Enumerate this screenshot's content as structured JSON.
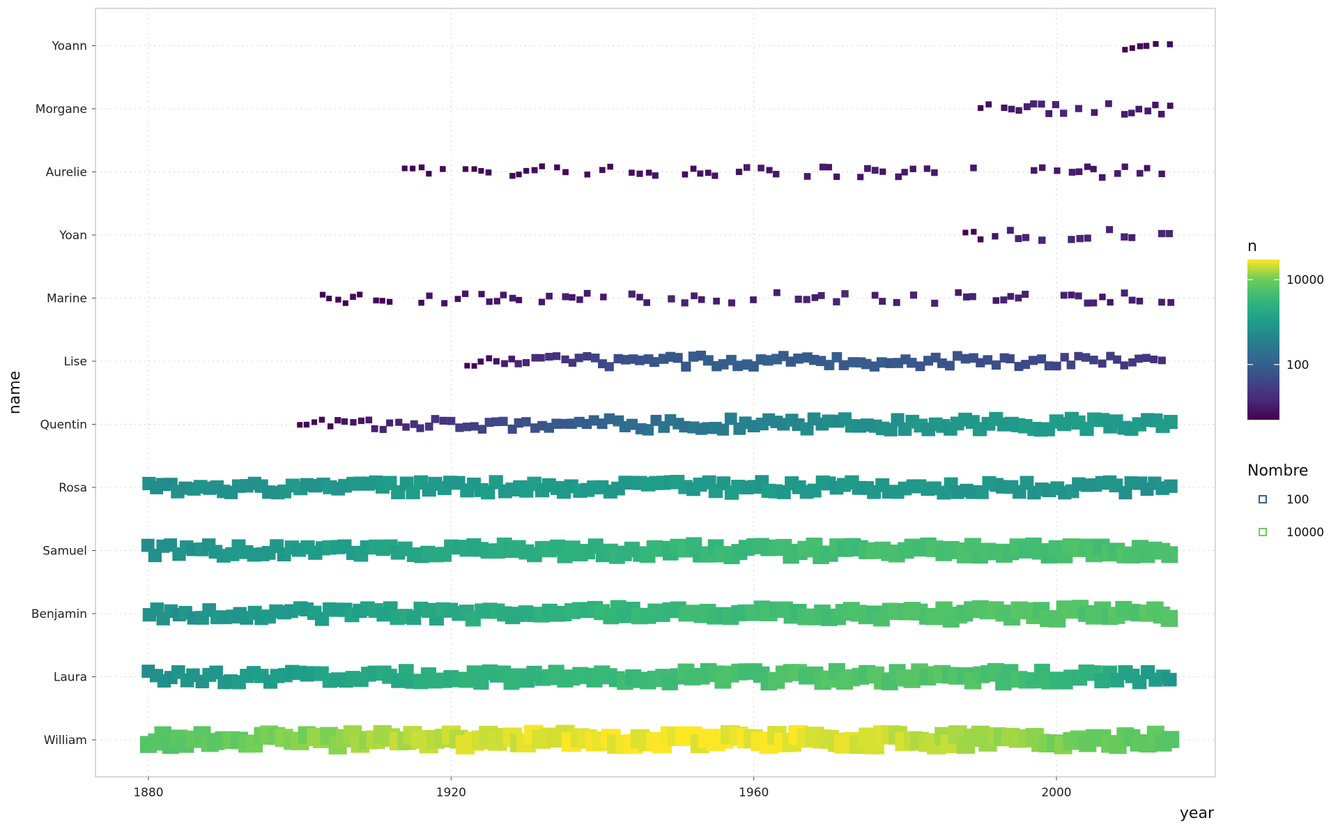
{
  "chart_data": {
    "type": "scatter",
    "xlabel": "year",
    "ylabel": "name",
    "xlim": [
      1873,
      2021
    ],
    "x_ticks": [
      "1880",
      "1920",
      "1960",
      "2000"
    ],
    "categories": [
      "William",
      "Laura",
      "Benjamin",
      "Samuel",
      "Rosa",
      "Quentin",
      "Lise",
      "Marine",
      "Yoan",
      "Aurelie",
      "Morgane",
      "Yoann"
    ],
    "grid": true,
    "legend_position": "right",
    "color_legend": {
      "title": "n",
      "scale": "log",
      "colormap": "viridis",
      "range": [
        5,
        30000
      ],
      "tick_labels": [
        "100",
        "10000"
      ],
      "tick_values": [
        100,
        10000
      ]
    },
    "size_legend": {
      "title": "Nombre",
      "labels": [
        "100",
        "10000"
      ],
      "values": [
        100,
        10000
      ]
    },
    "series": [
      {
        "name": "William",
        "years": [
          1880,
          2015
        ],
        "n_start": 6000,
        "n_peak": 28000,
        "peak_year": 1950,
        "n_end": 7000
      },
      {
        "name": "Laura",
        "years": [
          1880,
          2015
        ],
        "n_start": 600,
        "n_peak": 6000,
        "peak_year": 1985,
        "n_end": 900
      },
      {
        "name": "Benjamin",
        "years": [
          1880,
          2015
        ],
        "n_start": 600,
        "n_peak": 6000,
        "peak_year": 2005,
        "n_end": 6000
      },
      {
        "name": "Samuel",
        "years": [
          1880,
          2015
        ],
        "n_start": 600,
        "n_peak": 5000,
        "peak_year": 2000,
        "n_end": 5000
      },
      {
        "name": "Rosa",
        "years": [
          1880,
          2015
        ],
        "n_start": 600,
        "n_peak": 1000,
        "peak_year": 1930,
        "n_end": 700
      },
      {
        "name": "Quentin",
        "years": [
          1900,
          2015
        ],
        "n_start": 5,
        "n_peak": 1000,
        "peak_year": 2000,
        "n_end": 900
      },
      {
        "name": "Lise",
        "years": [
          1922,
          2014
        ],
        "n_start": 5,
        "n_peak": 100,
        "peak_year": 1960,
        "n_end": 20
      },
      {
        "name": "Marine",
        "years": [
          1900,
          2015
        ],
        "n_start": 5,
        "n_peak": 12,
        "peak_year": 1960,
        "n_end": 10
      },
      {
        "name": "Yoan",
        "years": [
          1988,
          2015
        ],
        "n_start": 5,
        "n_peak": 15,
        "peak_year": 2000,
        "n_end": 12
      },
      {
        "name": "Aurelie",
        "years": [
          1914,
          2014
        ],
        "n_start": 5,
        "n_peak": 10,
        "peak_year": 2000,
        "n_end": 8
      },
      {
        "name": "Morgane",
        "years": [
          1990,
          2015
        ],
        "n_start": 6,
        "n_peak": 12,
        "peak_year": 2000,
        "n_end": 8
      },
      {
        "name": "Yoann",
        "years": [
          2009,
          2015
        ],
        "n_start": 5,
        "n_peak": 6,
        "peak_year": 2012,
        "n_end": 6
      }
    ]
  }
}
